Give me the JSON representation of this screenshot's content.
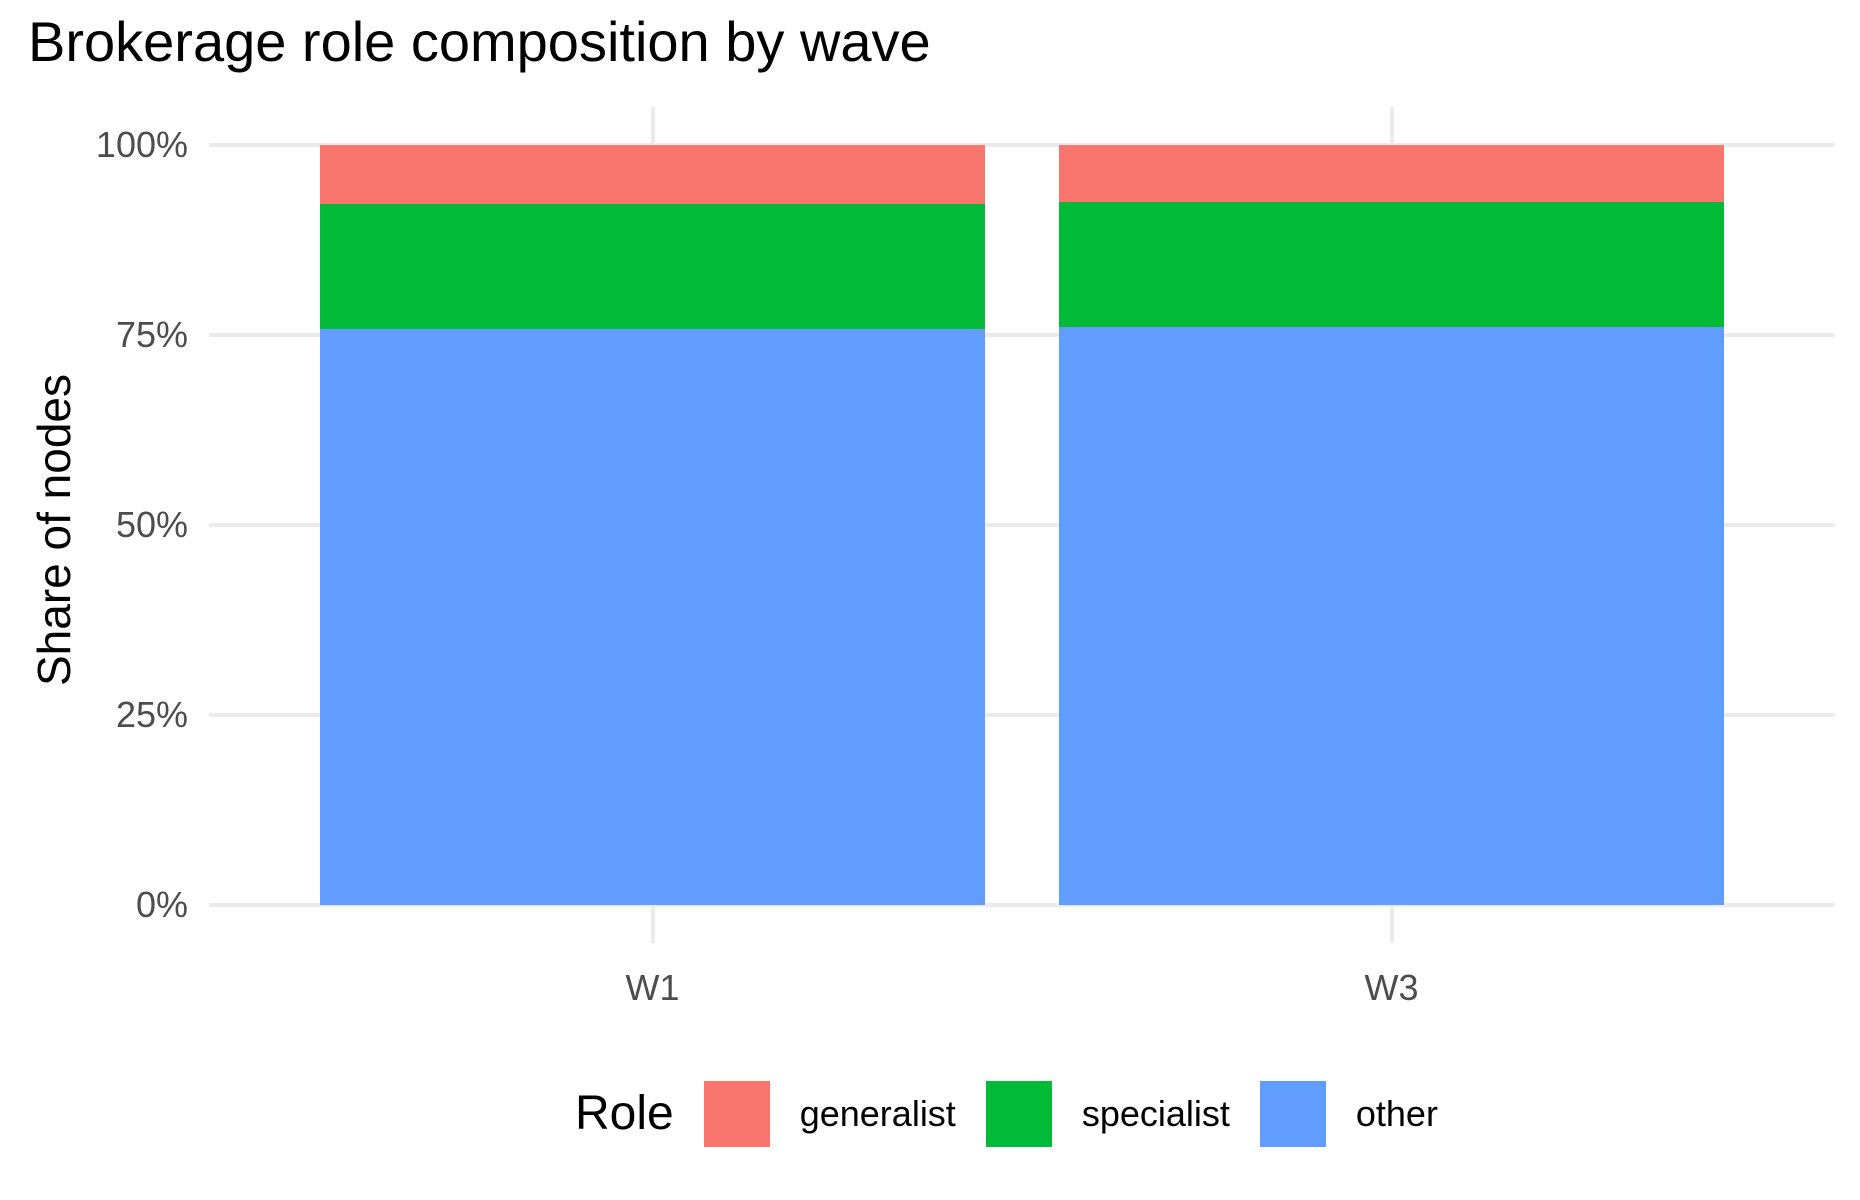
{
  "title": "Brokerage role composition by wave",
  "y_axis": {
    "label": "Share of nodes",
    "ticks": [
      "0%",
      "25%",
      "50%",
      "75%",
      "100%"
    ]
  },
  "x_axis": {
    "label": "",
    "ticks": [
      "W1",
      "W3"
    ]
  },
  "legend": {
    "title": "Role",
    "items": [
      {
        "label": "generalist",
        "color": "#F8766D"
      },
      {
        "label": "specialist",
        "color": "#00BA38"
      },
      {
        "label": "other",
        "color": "#619CFF"
      }
    ]
  },
  "chart_data": {
    "type": "bar",
    "stacked": true,
    "title": "Brokerage role composition by wave",
    "xlabel": "",
    "ylabel": "Share of nodes",
    "ylim": [
      0,
      1
    ],
    "y_tick_labels": [
      "0%",
      "25%",
      "50%",
      "75%",
      "100%"
    ],
    "categories": [
      "W1",
      "W3"
    ],
    "series": [
      {
        "name": "generalist",
        "color": "#F8766D",
        "values": [
          0.077,
          0.075
        ]
      },
      {
        "name": "specialist",
        "color": "#00BA38",
        "values": [
          0.165,
          0.164
        ]
      },
      {
        "name": "other",
        "color": "#619CFF",
        "values": [
          0.758,
          0.761
        ]
      }
    ],
    "legend_title": "Role",
    "legend_position": "bottom",
    "grid": true
  }
}
